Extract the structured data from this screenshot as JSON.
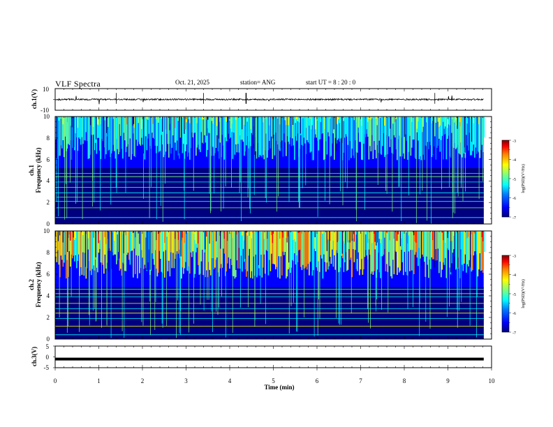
{
  "header": {
    "title": "VLF Spectra",
    "date": "Oct. 21, 2025",
    "station": "station= ANG",
    "start": "start  UT =   8  : 20 : 0"
  },
  "chart_data": [
    {
      "type": "line",
      "name": "ch1-waveform",
      "ylabel": "ch.1(V)",
      "ylim": [
        -10,
        10
      ],
      "yticks": [
        "10",
        "-10"
      ],
      "xlim": [
        0,
        10
      ],
      "baseline": 0,
      "data_end": 9.82
    },
    {
      "type": "heatmap",
      "name": "ch1-spectrogram",
      "ylabel_line1": "ch.1",
      "ylabel_line2": "Frequency  (kHz)",
      "ylim": [
        0,
        10
      ],
      "yticks": [
        "0",
        "2",
        "4",
        "6",
        "8",
        "10"
      ],
      "xlim": [
        0,
        10
      ],
      "data_end": 9.82,
      "colorbar": {
        "label": "log(PSD)(V²/Hz)",
        "range": [
          -7,
          -3
        ],
        "ticks": [
          "-3",
          "-4",
          "-5",
          "-6",
          "-7"
        ]
      },
      "lines_khz": [
        0.6,
        1.5,
        2.1,
        2.5,
        2.9,
        3.4,
        3.9,
        4.4,
        4.7
      ],
      "energy_cutoff_khz": 5.2
    },
    {
      "type": "heatmap",
      "name": "ch2-spectrogram",
      "ylabel_line1": "ch.2",
      "ylabel_line2": "Frequency  (kHz)",
      "ylim": [
        0,
        10
      ],
      "yticks": [
        "0",
        "2",
        "4",
        "6",
        "8",
        "10"
      ],
      "xlim": [
        0,
        10
      ],
      "data_end": 9.82,
      "colorbar": {
        "label": "log(PSD)(V²/Hz)",
        "range": [
          -7,
          -3
        ],
        "ticks": [
          "-3",
          "-4",
          "-5",
          "-6",
          "-7"
        ]
      },
      "lines_khz": [
        0.4,
        1.2,
        1.9,
        2.4,
        2.8,
        3.3,
        3.9,
        4.2,
        4.6
      ],
      "energy_cutoff_khz": 4.8
    },
    {
      "type": "line",
      "name": "ch3-waveform",
      "ylabel": "ch.3(V)",
      "ylim": [
        -5,
        5
      ],
      "yticks": [
        "5",
        "0",
        "-5"
      ],
      "xlim": [
        0,
        10
      ],
      "baseline": -1.0,
      "data_end": 9.82,
      "xlabel": "Time  (min)",
      "xticks": [
        "0",
        "1",
        "2",
        "3",
        "4",
        "5",
        "6",
        "7",
        "8",
        "9",
        "10"
      ]
    }
  ],
  "palette": [
    "#00007f",
    "#0000ff",
    "#007fff",
    "#00ffff",
    "#7fff7f",
    "#ffff00",
    "#ff7f00",
    "#ff0000",
    "#7f0000"
  ]
}
